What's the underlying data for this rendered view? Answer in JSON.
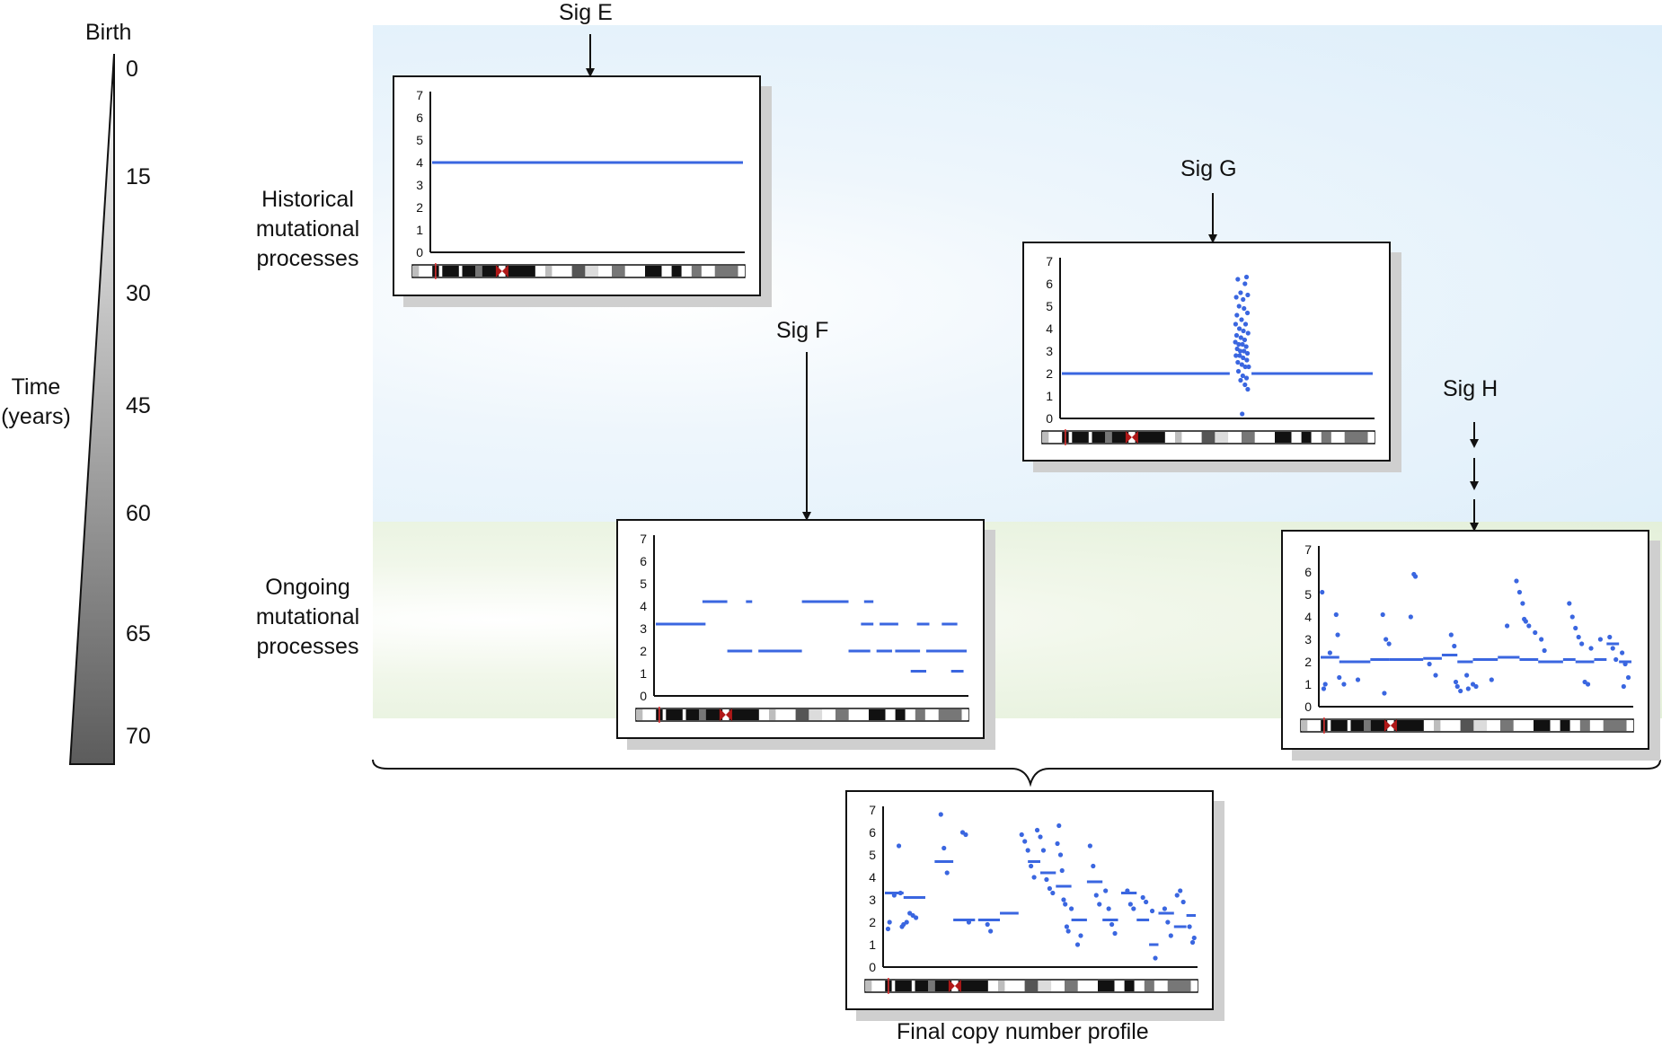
{
  "time_axis": {
    "top_label": "Birth",
    "title_line1": "Time",
    "title_line2": "(years)",
    "ticks": [
      "0",
      "15",
      "30",
      "45",
      "60",
      "65",
      "70"
    ]
  },
  "rows": {
    "historical": [
      "Historical",
      "mutational",
      "processes"
    ],
    "ongoing": [
      "Ongoing",
      "mutational",
      "processes"
    ]
  },
  "signatures": {
    "e": "Sig E",
    "f": "Sig F",
    "g": "Sig G",
    "h": "Sig H"
  },
  "final_label": "Final copy number profile",
  "y_ticks": [
    "0",
    "1",
    "2",
    "3",
    "4",
    "5",
    "6",
    "7"
  ],
  "colors": {
    "series": "#3a66e0",
    "historical_bg": "#ddeefa",
    "ongoing_bg": "#e4f0da",
    "centromere": "#b01818"
  },
  "chart_data": [
    {
      "name": "Sig E",
      "type": "line",
      "ylim": [
        0,
        7
      ],
      "segments": [
        [
          0.0,
          1.0,
          4
        ]
      ],
      "points": []
    },
    {
      "name": "Sig F",
      "type": "line",
      "ylim": [
        0,
        7
      ],
      "segments": [
        [
          0.0,
          0.16,
          3.2
        ],
        [
          0.15,
          0.23,
          4.2
        ],
        [
          0.29,
          0.31,
          4.2
        ],
        [
          0.47,
          0.62,
          4.2
        ],
        [
          0.67,
          0.7,
          4.2
        ],
        [
          0.23,
          0.31,
          2.0
        ],
        [
          0.33,
          0.47,
          2.0
        ],
        [
          0.62,
          0.69,
          2.0
        ],
        [
          0.71,
          0.76,
          2.0
        ],
        [
          0.77,
          0.85,
          2.0
        ],
        [
          0.87,
          1.0,
          2.0
        ],
        [
          0.66,
          0.7,
          3.2
        ],
        [
          0.72,
          0.78,
          3.2
        ],
        [
          0.84,
          0.88,
          3.2
        ],
        [
          0.92,
          0.97,
          3.2
        ],
        [
          0.82,
          0.87,
          1.1
        ],
        [
          0.95,
          0.99,
          1.1
        ]
      ],
      "points": []
    },
    {
      "name": "Sig G",
      "type": "scatter",
      "ylim": [
        0,
        7
      ],
      "segments": [
        [
          0.0,
          0.54,
          2
        ],
        [
          0.61,
          1.0,
          2
        ]
      ],
      "points": [
        [
          0.566,
          6.2
        ],
        [
          0.594,
          6.3
        ],
        [
          0.589,
          6.0
        ],
        [
          0.575,
          5.6
        ],
        [
          0.561,
          5.4
        ],
        [
          0.583,
          5.3
        ],
        [
          0.598,
          5.5
        ],
        [
          0.57,
          5.0
        ],
        [
          0.586,
          4.9
        ],
        [
          0.563,
          4.6
        ],
        [
          0.597,
          4.7
        ],
        [
          0.578,
          4.4
        ],
        [
          0.559,
          4.2
        ],
        [
          0.591,
          4.2
        ],
        [
          0.571,
          4.0
        ],
        [
          0.584,
          3.9
        ],
        [
          0.599,
          3.8
        ],
        [
          0.562,
          3.7
        ],
        [
          0.576,
          3.6
        ],
        [
          0.588,
          3.5
        ],
        [
          0.558,
          3.4
        ],
        [
          0.569,
          3.3
        ],
        [
          0.581,
          3.3
        ],
        [
          0.593,
          3.2
        ],
        [
          0.564,
          3.1
        ],
        [
          0.574,
          3.0
        ],
        [
          0.586,
          3.0
        ],
        [
          0.597,
          2.9
        ],
        [
          0.56,
          2.8
        ],
        [
          0.572,
          2.8
        ],
        [
          0.583,
          2.7
        ],
        [
          0.595,
          2.6
        ],
        [
          0.566,
          2.5
        ],
        [
          0.579,
          2.4
        ],
        [
          0.59,
          2.3
        ],
        [
          0.601,
          2.3
        ],
        [
          0.568,
          2.1
        ],
        [
          0.582,
          1.9
        ],
        [
          0.594,
          1.8
        ],
        [
          0.575,
          1.7
        ],
        [
          0.589,
          1.5
        ],
        [
          0.598,
          1.3
        ],
        [
          0.58,
          0.2
        ]
      ]
    },
    {
      "name": "Sig H",
      "type": "scatter",
      "ylim": [
        0,
        7
      ],
      "segments": [
        [
          0.0,
          0.06,
          2.2
        ],
        [
          0.06,
          0.16,
          2.0
        ],
        [
          0.16,
          0.22,
          2.1
        ],
        [
          0.22,
          0.33,
          2.1
        ],
        [
          0.33,
          0.39,
          2.15
        ],
        [
          0.39,
          0.44,
          2.3
        ],
        [
          0.44,
          0.49,
          2.0
        ],
        [
          0.49,
          0.57,
          2.1
        ],
        [
          0.57,
          0.64,
          2.2
        ],
        [
          0.64,
          0.7,
          2.1
        ],
        [
          0.7,
          0.78,
          2.0
        ],
        [
          0.78,
          0.82,
          2.1
        ],
        [
          0.82,
          0.88,
          2.0
        ],
        [
          0.88,
          0.92,
          2.1
        ],
        [
          0.92,
          0.96,
          2.8
        ],
        [
          0.96,
          1.0,
          2.0
        ]
      ],
      "points": [
        [
          0.005,
          5.1
        ],
        [
          0.01,
          0.8
        ],
        [
          0.015,
          1.0
        ],
        [
          0.03,
          2.4
        ],
        [
          0.05,
          4.1
        ],
        [
          0.055,
          3.2
        ],
        [
          0.06,
          1.3
        ],
        [
          0.075,
          1.0
        ],
        [
          0.12,
          1.2
        ],
        [
          0.2,
          4.1
        ],
        [
          0.21,
          3.0
        ],
        [
          0.22,
          2.8
        ],
        [
          0.205,
          0.6
        ],
        [
          0.29,
          4.0
        ],
        [
          0.3,
          5.9
        ],
        [
          0.305,
          5.8
        ],
        [
          0.35,
          1.9
        ],
        [
          0.37,
          1.4
        ],
        [
          0.42,
          3.2
        ],
        [
          0.43,
          2.7
        ],
        [
          0.435,
          1.1
        ],
        [
          0.44,
          0.9
        ],
        [
          0.45,
          0.7
        ],
        [
          0.47,
          1.4
        ],
        [
          0.475,
          0.8
        ],
        [
          0.49,
          1.0
        ],
        [
          0.5,
          0.9
        ],
        [
          0.55,
          1.2
        ],
        [
          0.6,
          3.6
        ],
        [
          0.63,
          5.6
        ],
        [
          0.64,
          5.1
        ],
        [
          0.65,
          4.6
        ],
        [
          0.655,
          3.9
        ],
        [
          0.66,
          3.8
        ],
        [
          0.67,
          3.6
        ],
        [
          0.69,
          3.3
        ],
        [
          0.71,
          3.0
        ],
        [
          0.72,
          2.5
        ],
        [
          0.8,
          4.6
        ],
        [
          0.81,
          4.0
        ],
        [
          0.82,
          3.5
        ],
        [
          0.83,
          3.1
        ],
        [
          0.84,
          2.8
        ],
        [
          0.85,
          1.1
        ],
        [
          0.86,
          1.0
        ],
        [
          0.87,
          2.6
        ],
        [
          0.9,
          3.0
        ],
        [
          0.93,
          3.1
        ],
        [
          0.94,
          2.6
        ],
        [
          0.95,
          2.1
        ],
        [
          0.97,
          2.4
        ],
        [
          0.98,
          1.9
        ],
        [
          0.99,
          1.3
        ],
        [
          0.975,
          0.9
        ]
      ]
    },
    {
      "name": "Final copy number profile",
      "type": "scatter",
      "ylim": [
        0,
        7
      ],
      "segments": [
        [
          0.0,
          0.06,
          3.3
        ],
        [
          0.06,
          0.13,
          3.1
        ],
        [
          0.16,
          0.22,
          4.7
        ],
        [
          0.22,
          0.29,
          2.1
        ],
        [
          0.3,
          0.37,
          2.1
        ],
        [
          0.37,
          0.43,
          2.4
        ],
        [
          0.46,
          0.5,
          4.7
        ],
        [
          0.5,
          0.55,
          4.2
        ],
        [
          0.55,
          0.6,
          3.6
        ],
        [
          0.6,
          0.65,
          2.1
        ],
        [
          0.65,
          0.7,
          3.8
        ],
        [
          0.7,
          0.75,
          2.1
        ],
        [
          0.76,
          0.81,
          3.3
        ],
        [
          0.81,
          0.85,
          2.1
        ],
        [
          0.85,
          0.88,
          1.0
        ],
        [
          0.88,
          0.93,
          2.4
        ],
        [
          0.93,
          0.97,
          1.8
        ],
        [
          0.97,
          1.0,
          2.3
        ]
      ],
      "points": [
        [
          0.01,
          1.7
        ],
        [
          0.015,
          2.0
        ],
        [
          0.03,
          3.2
        ],
        [
          0.045,
          5.4
        ],
        [
          0.05,
          3.3
        ],
        [
          0.055,
          1.8
        ],
        [
          0.06,
          1.9
        ],
        [
          0.07,
          2.0
        ],
        [
          0.08,
          2.4
        ],
        [
          0.09,
          2.3
        ],
        [
          0.1,
          2.2
        ],
        [
          0.18,
          6.8
        ],
        [
          0.19,
          5.3
        ],
        [
          0.2,
          4.2
        ],
        [
          0.25,
          6.0
        ],
        [
          0.26,
          5.9
        ],
        [
          0.27,
          2.0
        ],
        [
          0.33,
          1.9
        ],
        [
          0.34,
          1.6
        ],
        [
          0.44,
          5.9
        ],
        [
          0.45,
          5.6
        ],
        [
          0.46,
          5.2
        ],
        [
          0.47,
          4.5
        ],
        [
          0.48,
          4.0
        ],
        [
          0.49,
          6.1
        ],
        [
          0.5,
          5.8
        ],
        [
          0.51,
          5.2
        ],
        [
          0.52,
          3.9
        ],
        [
          0.53,
          3.5
        ],
        [
          0.54,
          3.3
        ],
        [
          0.555,
          5.5
        ],
        [
          0.56,
          6.3
        ],
        [
          0.565,
          5.0
        ],
        [
          0.57,
          4.3
        ],
        [
          0.575,
          3.0
        ],
        [
          0.58,
          2.8
        ],
        [
          0.585,
          1.8
        ],
        [
          0.59,
          1.6
        ],
        [
          0.6,
          2.6
        ],
        [
          0.62,
          1.0
        ],
        [
          0.63,
          1.4
        ],
        [
          0.66,
          5.4
        ],
        [
          0.67,
          4.5
        ],
        [
          0.68,
          3.2
        ],
        [
          0.69,
          2.8
        ],
        [
          0.71,
          3.4
        ],
        [
          0.72,
          2.6
        ],
        [
          0.73,
          1.9
        ],
        [
          0.74,
          1.5
        ],
        [
          0.78,
          3.4
        ],
        [
          0.79,
          2.8
        ],
        [
          0.8,
          2.6
        ],
        [
          0.83,
          3.1
        ],
        [
          0.84,
          2.9
        ],
        [
          0.86,
          2.5
        ],
        [
          0.87,
          0.4
        ],
        [
          0.9,
          2.6
        ],
        [
          0.91,
          2.0
        ],
        [
          0.92,
          1.4
        ],
        [
          0.94,
          3.2
        ],
        [
          0.95,
          3.4
        ],
        [
          0.96,
          2.9
        ],
        [
          0.98,
          1.8
        ],
        [
          0.99,
          1.1
        ],
        [
          0.995,
          1.3
        ]
      ]
    }
  ]
}
